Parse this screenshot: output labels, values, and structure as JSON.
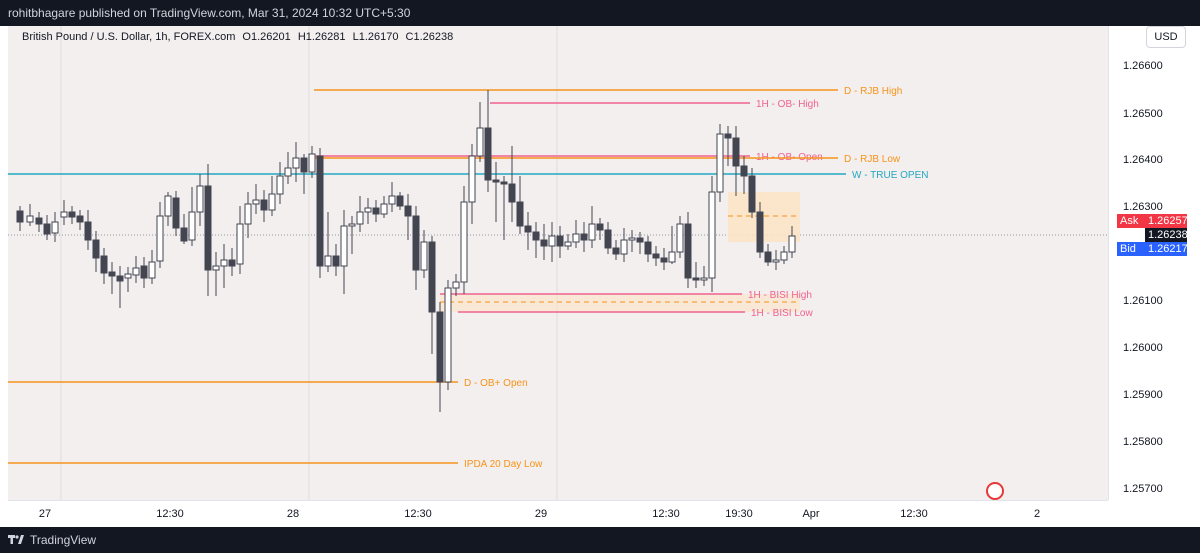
{
  "header": {
    "publisher": "rohitbhagare published on TradingView.com, Mar 31, 2024 10:32 UTC+5:30"
  },
  "legend": {
    "symbol": "British Pound / U.S. Dollar, 1h, FOREX.com",
    "open": "O1.26201",
    "high": "H1.26281",
    "low": "L1.26170",
    "close": "C1.26238"
  },
  "currency_button": "USD",
  "price_axis": {
    "labels": [
      "1.26600",
      "1.26500",
      "1.26400",
      "1.26300",
      "1.26100",
      "1.26000",
      "1.25900",
      "1.25800",
      "1.25700"
    ]
  },
  "quotes": {
    "ask_label": "Ask",
    "ask_value": "1.26257",
    "last_value": "1.26238",
    "bid_label": "Bid",
    "bid_value": "1.26217"
  },
  "time_axis": {
    "labels": [
      "27",
      "12:30",
      "28",
      "12:30",
      "29",
      "12:30",
      "19:30",
      "Apr",
      "12:30",
      "2"
    ]
  },
  "levels": [
    {
      "label": "D - RJB High",
      "price": 1.26548,
      "color": "#f7931a"
    },
    {
      "label": "1H - OB- High",
      "price": 1.26519,
      "color": "#f06292"
    },
    {
      "label": "1H - OB- Open",
      "price": 1.26405,
      "color": "#f06292"
    },
    {
      "label": "D - RJB Low",
      "price": 1.264,
      "color": "#f7931a"
    },
    {
      "label": "W - TRUE OPEN",
      "price": 1.2637,
      "color": "#22a7c1"
    },
    {
      "label": "1H - BISI High",
      "price": 1.26115,
      "color": "#f06292"
    },
    {
      "label": "1H - BISI Low",
      "price": 1.26077,
      "color": "#f06292"
    },
    {
      "label": "D - OB+ Open",
      "price": 1.25926,
      "color": "#f7931a"
    },
    {
      "label": "IPDA 20 Day Low",
      "price": 1.25752,
      "color": "#f7931a"
    }
  ],
  "colors": {
    "background": "#f3efee",
    "bull_candle": "#ffffff",
    "bear_candle": "#434651",
    "ask": "#f23645",
    "bid": "#2962ff",
    "last": "#131722",
    "zone_fill": "#fbe3c4"
  },
  "footer": {
    "brand": "TradingView"
  }
}
